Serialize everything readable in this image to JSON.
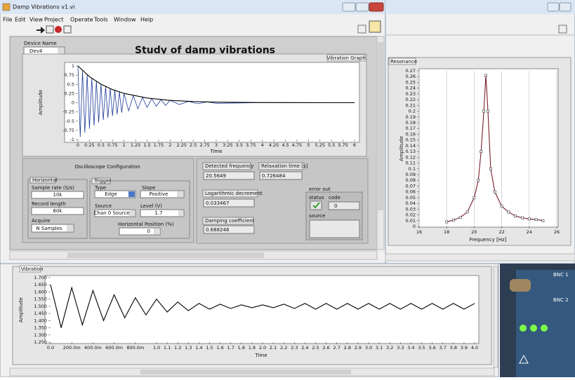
{
  "left_window": {
    "title": "Damp Vibrations v1.vi",
    "menu": [
      "File",
      "Edit",
      "View",
      "Project",
      "Operate",
      "Tools",
      "Window",
      "Help"
    ],
    "device_name": {
      "label": "Device Name",
      "value": "Dev4"
    },
    "heading": "Study of damp vibrations",
    "oscilloscope": {
      "title": "Oscilloscope Configuration",
      "horizontal": {
        "title": "Horizontal",
        "sample_rate": {
          "label": "Sample rate (S/s)",
          "value": "10k"
        },
        "record_length": {
          "label": "Record length",
          "value": "60k"
        },
        "acquire": {
          "label": "Acquire",
          "value": "N Samples"
        }
      },
      "trigger": {
        "title": "Trigger",
        "type": {
          "label": "Type",
          "value": "Edge"
        },
        "slope": {
          "label": "Slope",
          "value": "Positive"
        },
        "source": {
          "label": "Source",
          "value": "Chan 0 Source"
        },
        "level": {
          "label": "Level (V)",
          "value": 1.7
        },
        "position": {
          "label": "Horizontal Position (%)",
          "value": 0
        }
      }
    },
    "results": {
      "detected_frequency": {
        "label": "Detected frequency",
        "value": 20.5649
      },
      "relaxation_time": {
        "label": "Relaxation time [s]",
        "value": 0.726484
      },
      "log_decrement": {
        "label": "Logarithmic decrement",
        "value": 0.033467
      },
      "damping": {
        "label": "Damping coefficient",
        "value": 0.688246
      },
      "error_out": {
        "title": "error out",
        "status": "status",
        "code": "code",
        "code_value": 0,
        "source": "source"
      }
    }
  },
  "photo": {
    "labels": [
      "BNC 1",
      "BNC 2"
    ]
  },
  "chart_data": [
    {
      "type": "line",
      "title": "Vibration Graph",
      "x_label": "Time",
      "y_label": "Amplitude",
      "xlim": [
        0,
        6
      ],
      "ylim": [
        -1,
        1
      ],
      "xticks": [
        0,
        0.25,
        0.5,
        0.75,
        1,
        1.25,
        1.5,
        1.75,
        2,
        2.25,
        2.5,
        2.75,
        3,
        3.25,
        3.5,
        3.75,
        4,
        4.25,
        4.5,
        4.75,
        5,
        5.25,
        5.5,
        5.75,
        6
      ],
      "yticks": [
        -1,
        -0.75,
        -0.5,
        -0.25,
        0,
        0.25,
        0.5,
        0.75,
        1
      ],
      "grid": false,
      "series": [
        {
          "color": "#1f3c9a",
          "x": [
            0,
            0.05,
            0.1,
            0.15,
            0.2,
            0.25,
            0.3,
            0.35,
            0.4,
            0.45,
            0.5,
            0.55,
            0.6,
            0.65,
            0.7,
            0.75,
            0.8,
            0.85,
            0.9,
            0.95,
            1.0,
            1.1,
            1.2,
            1.3,
            1.4,
            1.5,
            1.6,
            1.7,
            1.8,
            1.9,
            2.0,
            2.2,
            2.4,
            2.6,
            2.8,
            3.0,
            4.0,
            6.0
          ],
          "values": [
            1.0,
            -0.933,
            0.871,
            -0.813,
            0.759,
            -0.709,
            0.662,
            -0.618,
            0.577,
            -0.538,
            0.503,
            -0.469,
            0.438,
            -0.409,
            0.381,
            -0.356,
            0.332,
            -0.31,
            0.29,
            -0.27,
            0.253,
            -0.22,
            0.192,
            -0.167,
            0.146,
            -0.127,
            0.111,
            -0.096,
            0.084,
            -0.073,
            0.064,
            -0.048,
            0.037,
            -0.028,
            0.021,
            -0.016,
            0.004,
            0
          ]
        },
        {
          "color": "#000000",
          "x": [
            0,
            0.25,
            0.5,
            0.75,
            1,
            1.5,
            2,
            2.5,
            3,
            4,
            5,
            6
          ],
          "values": [
            1,
            0.709,
            0.503,
            0.356,
            0.253,
            0.127,
            0.064,
            0.032,
            0.016,
            0.004,
            0.001,
            0
          ]
        }
      ]
    },
    {
      "type": "line",
      "title": "Resonance",
      "x_label": "Frequency [Hz]",
      "y_label": "Amplitude",
      "xlim": [
        16,
        26
      ],
      "ylim": [
        0,
        0.27
      ],
      "xticks": [
        16,
        18,
        20,
        22,
        24,
        26
      ],
      "yticks": [
        0,
        0.01,
        0.02,
        0.03,
        0.04,
        0.05,
        0.06,
        0.07,
        0.08,
        0.09,
        0.1,
        0.11,
        0.12,
        0.13,
        0.14,
        0.15,
        0.16,
        0.17,
        0.18,
        0.19,
        0.2,
        0.21,
        0.22,
        0.23,
        0.24,
        0.25,
        0.26,
        0.27
      ],
      "grid": "x",
      "marker": "square",
      "series": [
        {
          "color": "#7a1f2b",
          "x": [
            18,
            18.5,
            19,
            19.5,
            20,
            20.3,
            20.5,
            20.7,
            20.85,
            21,
            21.2,
            21.5,
            22,
            22.5,
            23,
            23.5,
            24,
            24.5,
            25
          ],
          "values": [
            0.008,
            0.011,
            0.016,
            0.025,
            0.05,
            0.08,
            0.13,
            0.2,
            0.262,
            0.2,
            0.1,
            0.06,
            0.035,
            0.025,
            0.018,
            0.015,
            0.013,
            0.012,
            0.01
          ]
        }
      ]
    },
    {
      "type": "line",
      "title": "Vibration",
      "x_label": "Time",
      "y_label": "Amplitude",
      "xlim": [
        0,
        4
      ],
      "ylim": [
        1.25,
        1.7
      ],
      "xticks": [
        {
          "value": 0,
          "label": "0.0"
        },
        {
          "value": 0.2,
          "label": "200.0m"
        },
        {
          "value": 0.4,
          "label": "400.0m"
        },
        {
          "value": 0.6,
          "label": "600.0m"
        },
        {
          "value": 0.8,
          "label": "800.0m"
        },
        {
          "value": 1,
          "label": "1.0"
        },
        1.1,
        1.2,
        1.3,
        1.4,
        1.5,
        1.6,
        1.7,
        1.8,
        1.9,
        {
          "value": 2,
          "label": "2.0"
        },
        2.1,
        2.2,
        2.3,
        2.4,
        2.5,
        2.6,
        2.7,
        2.8,
        2.9,
        {
          "value": 3,
          "label": "3.0"
        },
        3.1,
        3.2,
        3.3,
        3.4,
        3.5,
        3.6,
        3.7,
        3.8,
        3.9,
        {
          "value": 4,
          "label": "4.0"
        }
      ],
      "yticks": [
        {
          "value": 1.25,
          "label": "1.250"
        },
        {
          "value": 1.3,
          "label": "1.300"
        },
        {
          "value": 1.35,
          "label": "1.350"
        },
        {
          "value": 1.4,
          "label": "1.400"
        },
        {
          "value": 1.45,
          "label": "1.450"
        },
        {
          "value": 1.5,
          "label": "1.500"
        },
        {
          "value": 1.55,
          "label": "1.550"
        },
        {
          "value": 1.6,
          "label": "1.600"
        },
        {
          "value": 1.65,
          "label": "1.650"
        },
        {
          "value": 1.7,
          "label": "1.700"
        }
      ],
      "grid": false,
      "series": [
        {
          "color": "#000000",
          "x": [
            0,
            0.1,
            0.2,
            0.3,
            0.4,
            0.5,
            0.6,
            0.7,
            0.8,
            0.9,
            1.0,
            1.1,
            1.2,
            1.3,
            1.4,
            1.5,
            1.6,
            1.7,
            1.8,
            1.9,
            2.0,
            2.1,
            2.2,
            2.3,
            2.4,
            2.5,
            2.6,
            2.7,
            2.8,
            2.9,
            3.0,
            3.1,
            3.2,
            3.3,
            3.4,
            3.5,
            3.6,
            3.7,
            3.8,
            3.9,
            4.0
          ],
          "values": [
            1.65,
            1.35,
            1.63,
            1.37,
            1.61,
            1.4,
            1.58,
            1.42,
            1.56,
            1.44,
            1.55,
            1.46,
            1.53,
            1.47,
            1.52,
            1.48,
            1.515,
            1.485,
            1.51,
            1.49,
            1.51,
            1.49,
            1.515,
            1.485,
            1.52,
            1.48,
            1.52,
            1.48,
            1.52,
            1.48,
            1.52,
            1.48,
            1.52,
            1.48,
            1.52,
            1.48,
            1.52,
            1.48,
            1.52,
            1.48,
            1.52
          ]
        }
      ]
    }
  ]
}
